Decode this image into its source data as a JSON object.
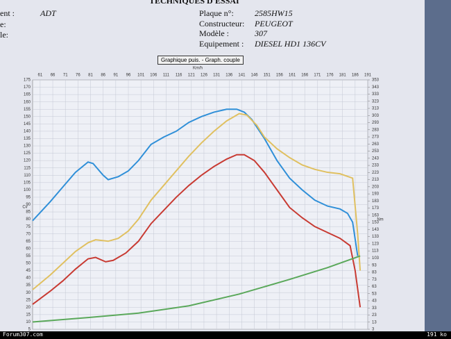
{
  "header": {
    "title": "TECHNIQUES D'ESSAI",
    "left_fields": [
      "ent :",
      "e:",
      "le:"
    ],
    "left_value": "ADT",
    "fields": [
      {
        "label": "Plaque n°:",
        "value": "2585HW15"
      },
      {
        "label": "Constructeur:",
        "value": "PEUGEOT"
      },
      {
        "label": "Modèle :",
        "value": "307"
      },
      {
        "label": "Equipement :",
        "value": "DIESEL  HD1 136CV"
      }
    ]
  },
  "footer": {
    "site": "Forum307.com",
    "size": "191 ko"
  },
  "chart_data": {
    "type": "line",
    "title": "Graphique puis. - Graph. couple",
    "x_label": "Km/h",
    "y_label": "Cv",
    "y2_label": "Nm",
    "grid": true,
    "xlim": [
      58,
      191
    ],
    "xticks": [
      61,
      66,
      71,
      76,
      81,
      86,
      91,
      96,
      101,
      106,
      111,
      116,
      121,
      126,
      131,
      136,
      141,
      146,
      151,
      156,
      161,
      166,
      171,
      176,
      181,
      186,
      191
    ],
    "ylim": [
      5,
      175
    ],
    "yticks": [
      5,
      10,
      15,
      20,
      25,
      30,
      35,
      40,
      45,
      50,
      55,
      60,
      65,
      70,
      75,
      80,
      85,
      90,
      95,
      100,
      105,
      110,
      115,
      120,
      125,
      130,
      135,
      140,
      145,
      150,
      155,
      160,
      165,
      170,
      175
    ],
    "y2lim": [
      3,
      353
    ],
    "y2ticks": [
      3,
      13,
      23,
      33,
      43,
      53,
      63,
      73,
      83,
      93,
      103,
      113,
      123,
      133,
      143,
      153,
      163,
      173,
      183,
      193,
      203,
      213,
      223,
      233,
      243,
      253,
      263,
      273,
      283,
      293,
      303,
      313,
      323,
      333,
      343,
      353
    ],
    "series": [
      {
        "color": "#2f8fd8",
        "x": [
          58,
          65,
          70,
          75,
          80,
          82,
          86,
          88,
          92,
          96,
          100,
          105,
          110,
          115,
          120,
          125,
          130,
          135,
          139,
          142,
          145,
          150,
          155,
          160,
          165,
          170,
          175,
          180,
          183,
          185,
          187
        ],
        "values": [
          79,
          92,
          102,
          112,
          119,
          118,
          110,
          107,
          109,
          113,
          120,
          131,
          136,
          140,
          146,
          150,
          153,
          155,
          155,
          153,
          148,
          135,
          120,
          108,
          100,
          93,
          89,
          87,
          84,
          78,
          55
        ]
      },
      {
        "color": "#e0c060",
        "x": [
          58,
          65,
          70,
          75,
          80,
          83,
          88,
          92,
          96,
          100,
          105,
          110,
          115,
          120,
          125,
          130,
          135,
          140,
          143,
          147,
          150,
          155,
          160,
          165,
          170,
          175,
          180,
          185,
          187,
          188
        ],
        "values": [
          32,
          42,
          50,
          58,
          64,
          66,
          65,
          67,
          72,
          80,
          93,
          103,
          113,
          123,
          132,
          140,
          147,
          152,
          151,
          144,
          136,
          128,
          122,
          117,
          114,
          112,
          111,
          108,
          70,
          45
        ]
      },
      {
        "color": "#c83a32",
        "x": [
          58,
          65,
          70,
          75,
          80,
          83,
          87,
          90,
          95,
          100,
          105,
          110,
          115,
          120,
          125,
          130,
          135,
          139,
          142,
          146,
          150,
          155,
          160,
          165,
          170,
          175,
          180,
          184,
          186,
          188
        ],
        "values": [
          22,
          31,
          38,
          46,
          53,
          54,
          51,
          52,
          57,
          65,
          77,
          86,
          95,
          103,
          110,
          116,
          121,
          124,
          124,
          120,
          112,
          100,
          88,
          81,
          75,
          71,
          67,
          62,
          45,
          20
        ]
      },
      {
        "color": "#5aa85a",
        "x": [
          58,
          80,
          100,
          120,
          140,
          160,
          175,
          188
        ],
        "values": [
          10,
          13,
          16,
          21,
          29,
          39,
          47,
          55
        ]
      }
    ]
  }
}
